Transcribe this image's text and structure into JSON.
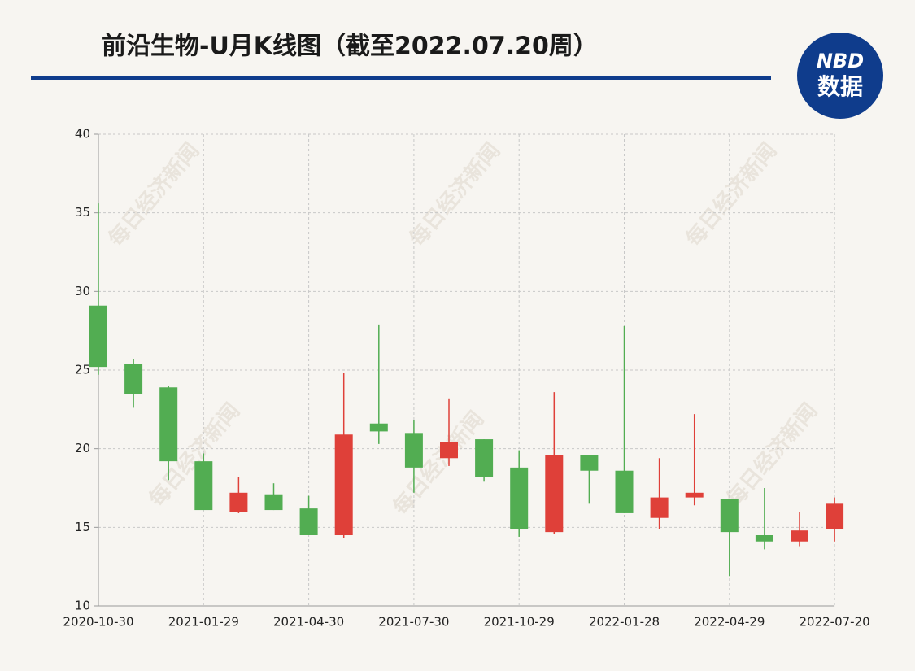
{
  "chart_data": {
    "type": "candlestick",
    "title": "前沿生物-U月K线图（截至2022.07.20周）",
    "logo": {
      "top": "NBD",
      "bottom": "数据"
    },
    "watermark": "每日经济新闻",
    "categories": [
      "2020-10-30",
      null,
      null,
      "2021-01-29",
      null,
      null,
      "2021-04-30",
      null,
      null,
      "2021-07-30",
      null,
      null,
      "2021-10-29",
      null,
      null,
      "2022-01-28",
      null,
      null,
      "2022-04-29",
      null,
      null,
      "2022-07-20"
    ],
    "open": [
      29.1,
      25.4,
      23.9,
      19.2,
      16.0,
      17.1,
      16.2,
      14.5,
      21.6,
      21.0,
      19.4,
      20.6,
      18.8,
      14.7,
      19.6,
      18.6,
      15.6,
      16.9,
      16.8,
      14.5,
      14.1,
      14.9
    ],
    "high": [
      35.6,
      25.7,
      24.0,
      19.7,
      18.2,
      17.8,
      17.0,
      24.8,
      27.9,
      21.8,
      23.2,
      20.6,
      19.9,
      23.6,
      19.6,
      27.8,
      19.4,
      22.2,
      16.8,
      17.5,
      16.0,
      16.9
    ],
    "low": [
      24.7,
      22.6,
      18.0,
      16.1,
      15.9,
      16.1,
      14.5,
      14.3,
      20.3,
      17.2,
      18.9,
      17.9,
      14.4,
      14.6,
      16.5,
      15.9,
      14.9,
      16.4,
      11.9,
      13.6,
      13.8,
      14.1
    ],
    "close": [
      25.2,
      23.5,
      19.2,
      16.1,
      17.2,
      16.1,
      14.5,
      20.9,
      21.1,
      18.8,
      20.4,
      18.2,
      14.9,
      19.6,
      18.6,
      15.9,
      16.9,
      17.2,
      14.7,
      14.1,
      14.8,
      16.5
    ],
    "up_color": "#df4039",
    "down_color": "#52ad52",
    "ylim": [
      10,
      40
    ],
    "yticks": [
      10,
      15,
      20,
      25,
      30,
      35,
      40
    ],
    "grid": true
  }
}
